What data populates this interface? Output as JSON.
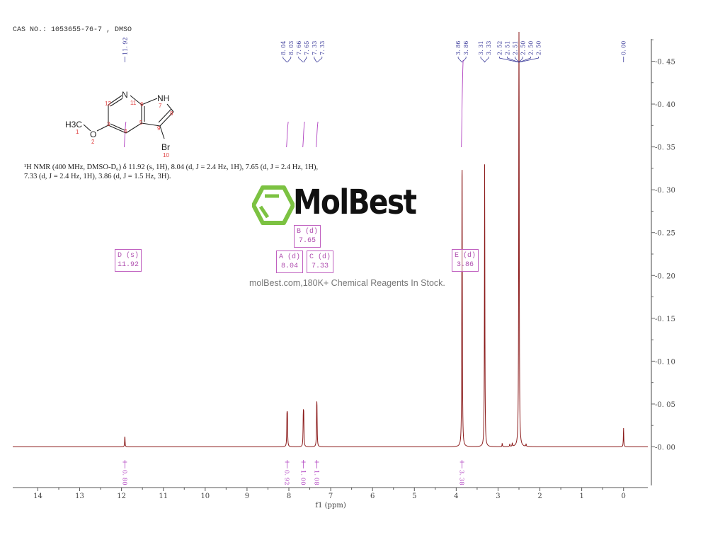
{
  "header": {
    "cas_line": "CAS NO.: 1053655-76-7 , DMSO"
  },
  "structure": {
    "atoms": [
      "N",
      "NH",
      "H3C",
      "O",
      "Br"
    ],
    "numbers": [
      "1",
      "2",
      "3",
      "4",
      "5",
      "6",
      "7",
      "8",
      "9",
      "10",
      "11",
      "12"
    ]
  },
  "nmr_text": {
    "line1": "¹H NMR (400 MHz, DMSO-D₆) δ 11.92 (s, 1H), 8.04 (d, J = 2.4 Hz, 1H), 7.65 (d, J = 2.4 Hz, 1H),",
    "line2": "7.33 (d, J = 2.4 Hz, 1H), 3.86 (d, J = 1.5 Hz, 3H)."
  },
  "watermark": {
    "name": "MolBest",
    "tagline": "molBest.com,180K+ Chemical Reagents In Stock."
  },
  "multiplets": [
    {
      "label": "D (s)",
      "shift": "11.92"
    },
    {
      "label": "A (d)",
      "shift": "8.04"
    },
    {
      "label": "B (d)",
      "shift": "7.65"
    },
    {
      "label": "C (d)",
      "shift": "7.33"
    },
    {
      "label": "E (d)",
      "shift": "3.86"
    }
  ],
  "chart_data": {
    "type": "line",
    "xlabel": "f1 (ppm)",
    "ylabel": "",
    "xlim": [
      14.6,
      -0.58
    ],
    "ylim": [
      -0.045,
      0.476
    ],
    "x_reversed": true,
    "xticks": [
      "14",
      "13",
      "12",
      "11",
      "10",
      "9",
      "8",
      "7",
      "6",
      "5",
      "4",
      "3",
      "2",
      "1",
      "0"
    ],
    "yticks": [
      "0.00",
      "0.05",
      "0.10",
      "0.15",
      "0.20",
      "0.25",
      "0.30",
      "0.35",
      "0.40",
      "0.45"
    ],
    "grid": false,
    "line_color": "#8b1a1a",
    "label_color": "#3a3a9a",
    "integral_color": "#b040c0",
    "peaks": [
      {
        "ppm": 11.92,
        "intensity": 0.013
      },
      {
        "ppm": 8.045,
        "intensity": 0.034
      },
      {
        "ppm": 8.035,
        "intensity": 0.033
      },
      {
        "ppm": 7.655,
        "intensity": 0.035
      },
      {
        "ppm": 7.645,
        "intensity": 0.034
      },
      {
        "ppm": 7.335,
        "intensity": 0.036
      },
      {
        "ppm": 7.328,
        "intensity": 0.035
      },
      {
        "ppm": 3.862,
        "intensity": 0.19
      },
      {
        "ppm": 3.858,
        "intensity": 0.19
      },
      {
        "ppm": 3.32,
        "intensity": 0.335
      },
      {
        "ppm": 2.9,
        "intensity": 0.004
      },
      {
        "ppm": 2.72,
        "intensity": 0.003
      },
      {
        "ppm": 2.66,
        "intensity": 0.004
      },
      {
        "ppm": 2.5,
        "intensity": 0.6
      },
      {
        "ppm": 2.33,
        "intensity": 0.003
      },
      {
        "ppm": 0.0,
        "intensity": 0.022
      }
    ],
    "peak_labels": [
      {
        "text": "11.92",
        "ppm": 11.92
      },
      {
        "text": "8.04",
        "ppm": 8.045
      },
      {
        "text": "8.03",
        "ppm": 8.035
      },
      {
        "text": "7.66",
        "ppm": 7.655
      },
      {
        "text": "7.65",
        "ppm": 7.645
      },
      {
        "text": "7.33",
        "ppm": 7.335
      },
      {
        "text": "7.33",
        "ppm": 7.328
      },
      {
        "text": "3.86",
        "ppm": 3.862
      },
      {
        "text": "3.86",
        "ppm": 3.858
      },
      {
        "text": "3.31",
        "ppm": 3.31
      },
      {
        "text": "3.33",
        "ppm": 3.33
      },
      {
        "text": "2.52",
        "ppm": 2.5
      },
      {
        "text": "2.51",
        "ppm": 2.5
      },
      {
        "text": "2.51",
        "ppm": 2.5
      },
      {
        "text": "2.50",
        "ppm": 2.5
      },
      {
        "text": "2.50",
        "ppm": 2.5
      },
      {
        "text": "2.50",
        "ppm": 2.5
      },
      {
        "text": "0.00",
        "ppm": 0.0
      }
    ],
    "integrals": [
      {
        "ppm": 11.92,
        "value": "0.80"
      },
      {
        "ppm": 8.04,
        "value": "0.92"
      },
      {
        "ppm": 7.65,
        "value": "1.00"
      },
      {
        "ppm": 7.33,
        "value": "1.08"
      },
      {
        "ppm": 3.86,
        "value": "3.38"
      }
    ]
  }
}
